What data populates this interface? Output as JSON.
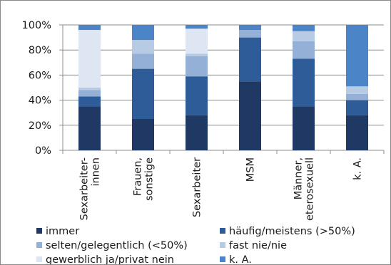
{
  "chart_data": {
    "type": "bar",
    "stacked": true,
    "percent_stacked": true,
    "categories": [
      [
        "Sexarbeiter-",
        "innen"
      ],
      [
        "Frauen,",
        "sonstige"
      ],
      [
        "Sexarbeiter"
      ],
      [
        "MSM"
      ],
      [
        "Männer,",
        "heterosexuell"
      ],
      [
        "k. A."
      ]
    ],
    "y_ticks": [
      "0%",
      "20%",
      "40%",
      "60%",
      "80%",
      "100%"
    ],
    "ylim": [
      0,
      100
    ],
    "grid": true,
    "legend_position": "bottom",
    "series": [
      {
        "name": "immer",
        "color": "#203864",
        "values": [
          35,
          25,
          28,
          55,
          35,
          28
        ]
      },
      {
        "name": "häufig/meistens (>50%)",
        "color": "#2e5c98",
        "values": [
          8,
          40,
          31,
          35,
          38,
          12
        ]
      },
      {
        "name": "selten/gelegentlich (<50%)",
        "color": "#94b0d6",
        "values": [
          5,
          12,
          16,
          6,
          14,
          5
        ]
      },
      {
        "name": "fast nie/nie",
        "color": "#b8cbe4",
        "values": [
          2,
          11,
          2,
          0,
          8,
          6
        ]
      },
      {
        "name": "gewerblich ja/privat nein",
        "color": "#dde6f2",
        "values": [
          46,
          0,
          20,
          0,
          0,
          0
        ]
      },
      {
        "name": "k. A.",
        "color": "#4c84c8",
        "values": [
          4,
          12,
          3,
          4,
          5,
          49
        ]
      }
    ]
  }
}
